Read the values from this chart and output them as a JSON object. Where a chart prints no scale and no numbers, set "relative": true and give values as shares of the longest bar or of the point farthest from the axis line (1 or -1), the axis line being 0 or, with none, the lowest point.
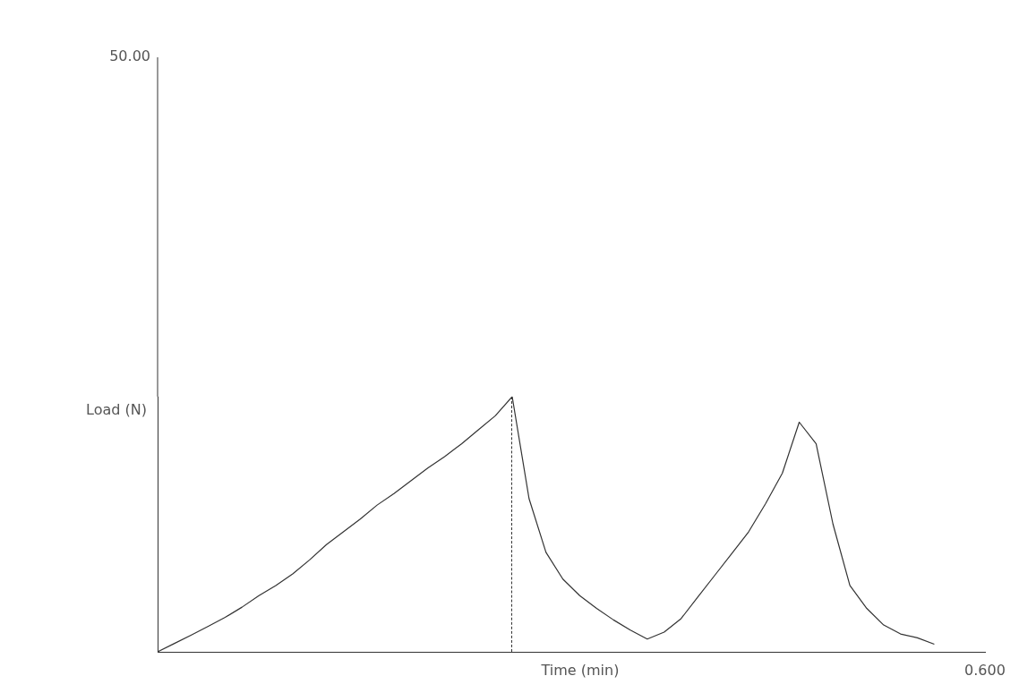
{
  "chart_data": {
    "type": "line",
    "relative": true,
    "xlabel": "Time (min)",
    "ylabel": "Load (N)",
    "categories": [
      null,
      null,
      null,
      null,
      null,
      null,
      null,
      null,
      null,
      null,
      null,
      null,
      null,
      null,
      null,
      null,
      null,
      null,
      null,
      null,
      null,
      null,
      null,
      null,
      null,
      null,
      null,
      null,
      null,
      null,
      null,
      null,
      null,
      null,
      null,
      null,
      null,
      null,
      null,
      null,
      null,
      null,
      null,
      null,
      null,
      null,
      null,
      null,
      null,
      null
    ],
    "series": [
      {
        "color": "#333333",
        "values": [
          0,
          0.033,
          0.066,
          0.1,
          0.135,
          0.175,
          0.22,
          0.26,
          0.305,
          0.36,
          0.42,
          0.47,
          0.52,
          0.575,
          0.62,
          0.67,
          0.72,
          0.765,
          0.815,
          0.87,
          0.925,
          1,
          0.6,
          0.39,
          0.285,
          0.22,
          0.17,
          0.125,
          0.085,
          0.05,
          0.077,
          0.13,
          0.215,
          0.3,
          0.385,
          0.47,
          0.58,
          0.7,
          0.9,
          0.815,
          0.5,
          0.26,
          0.17,
          0.105,
          0.07,
          0.055,
          0.03,
          null,
          null,
          null
        ]
      }
    ],
    "annotations": [
      "50.00",
      "0.600"
    ],
    "legend": false,
    "marker": "none",
    "line_style": "solid"
  }
}
